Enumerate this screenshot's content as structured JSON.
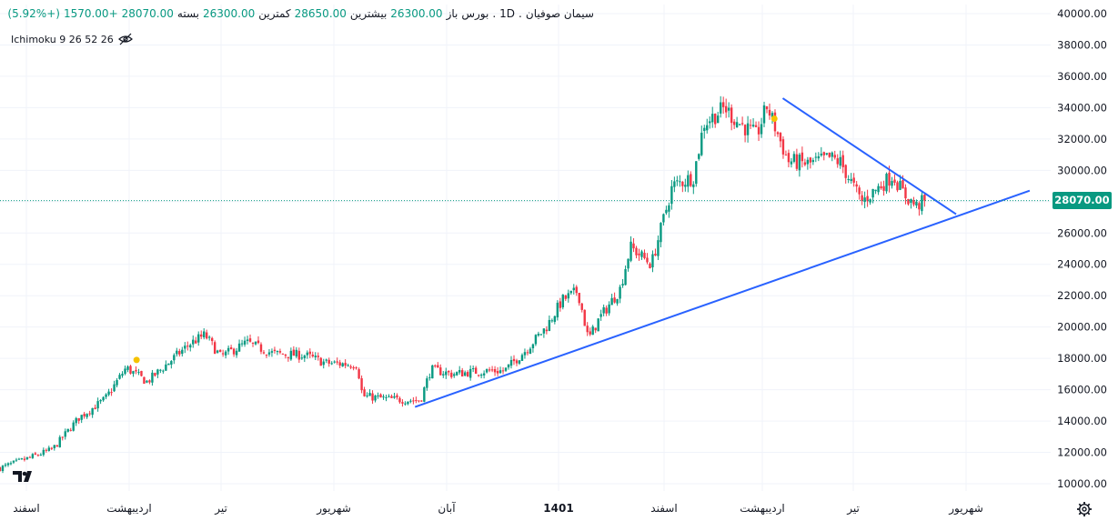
{
  "header": {
    "symbol": "سیمان صوفیان",
    "interval": "1D",
    "exchange": "بورس",
    "open_label": "باز",
    "open": "26300.00",
    "high_label": "بیشترین",
    "high": "28650.00",
    "low_label": "کمترین",
    "low": "26300.00",
    "close_label": "بسته",
    "close": "28070.00",
    "change": "+1570.00",
    "change_pct": "(+5.92%)",
    "separator": "."
  },
  "indicator": {
    "label": "Ichimoku 9 26 52 26"
  },
  "price_tag": "28070.00",
  "colors": {
    "up": "#089981",
    "down": "#F23645",
    "trendline": "#2962FF",
    "grid": "#F0F3FA",
    "marker": "#F5C200"
  },
  "chart_data": {
    "type": "candlestick",
    "y_axis": {
      "ticks": [
        "10000.00",
        "12000.00",
        "14000.00",
        "16000.00",
        "18000.00",
        "20000.00",
        "22000.00",
        "24000.00",
        "26000.00",
        "28000.00",
        "30000.00",
        "32000.00",
        "34000.00",
        "36000.00",
        "38000.00",
        "40000.00"
      ],
      "range": [
        9000,
        40500
      ]
    },
    "x_axis": {
      "ticks": [
        "اسفند",
        "اردیبهشت",
        "تیر",
        "شهریور",
        "آبان",
        "1401",
        "اسفند",
        "اردیبهشت",
        "تیر",
        "شهریور"
      ],
      "bold_tick": "1401"
    },
    "price_path": [
      [
        0,
        11000
      ],
      [
        0.03,
        11700
      ],
      [
        0.05,
        12200
      ],
      [
        0.075,
        14200
      ],
      [
        0.1,
        15400
      ],
      [
        0.12,
        17400
      ],
      [
        0.14,
        16500
      ],
      [
        0.16,
        17700
      ],
      [
        0.18,
        18900
      ],
      [
        0.195,
        19500
      ],
      [
        0.21,
        18100
      ],
      [
        0.235,
        19000
      ],
      [
        0.26,
        18300
      ],
      [
        0.29,
        18200
      ],
      [
        0.31,
        17700
      ],
      [
        0.34,
        17600
      ],
      [
        0.345,
        15600
      ],
      [
        0.37,
        15400
      ],
      [
        0.4,
        15300
      ],
      [
        0.41,
        17300
      ],
      [
        0.43,
        17000
      ],
      [
        0.46,
        17200
      ],
      [
        0.48,
        17200
      ],
      [
        0.5,
        18500
      ],
      [
        0.52,
        20000
      ],
      [
        0.535,
        21700
      ],
      [
        0.55,
        22300
      ],
      [
        0.56,
        19200
      ],
      [
        0.57,
        20500
      ],
      [
        0.59,
        22400
      ],
      [
        0.6,
        25100
      ],
      [
        0.62,
        24000
      ],
      [
        0.64,
        29000
      ],
      [
        0.66,
        29600
      ],
      [
        0.67,
        33000
      ],
      [
        0.69,
        34000
      ],
      [
        0.7,
        33200
      ],
      [
        0.72,
        32200
      ],
      [
        0.73,
        34100
      ],
      [
        0.75,
        30600
      ],
      [
        0.77,
        30400
      ],
      [
        0.79,
        30800
      ],
      [
        0.8,
        30500
      ],
      [
        0.82,
        28000
      ],
      [
        0.85,
        29700
      ],
      [
        0.86,
        28500
      ],
      [
        0.872,
        27700
      ],
      [
        0.88,
        28070
      ]
    ],
    "trendlines": [
      {
        "name": "support",
        "points": [
          [
            0.395,
            14900
          ],
          [
            0.98,
            28700
          ]
        ]
      },
      {
        "name": "resistance",
        "points": [
          [
            0.745,
            34600
          ],
          [
            0.91,
            27200
          ]
        ]
      }
    ],
    "last_price": 28070.0
  }
}
